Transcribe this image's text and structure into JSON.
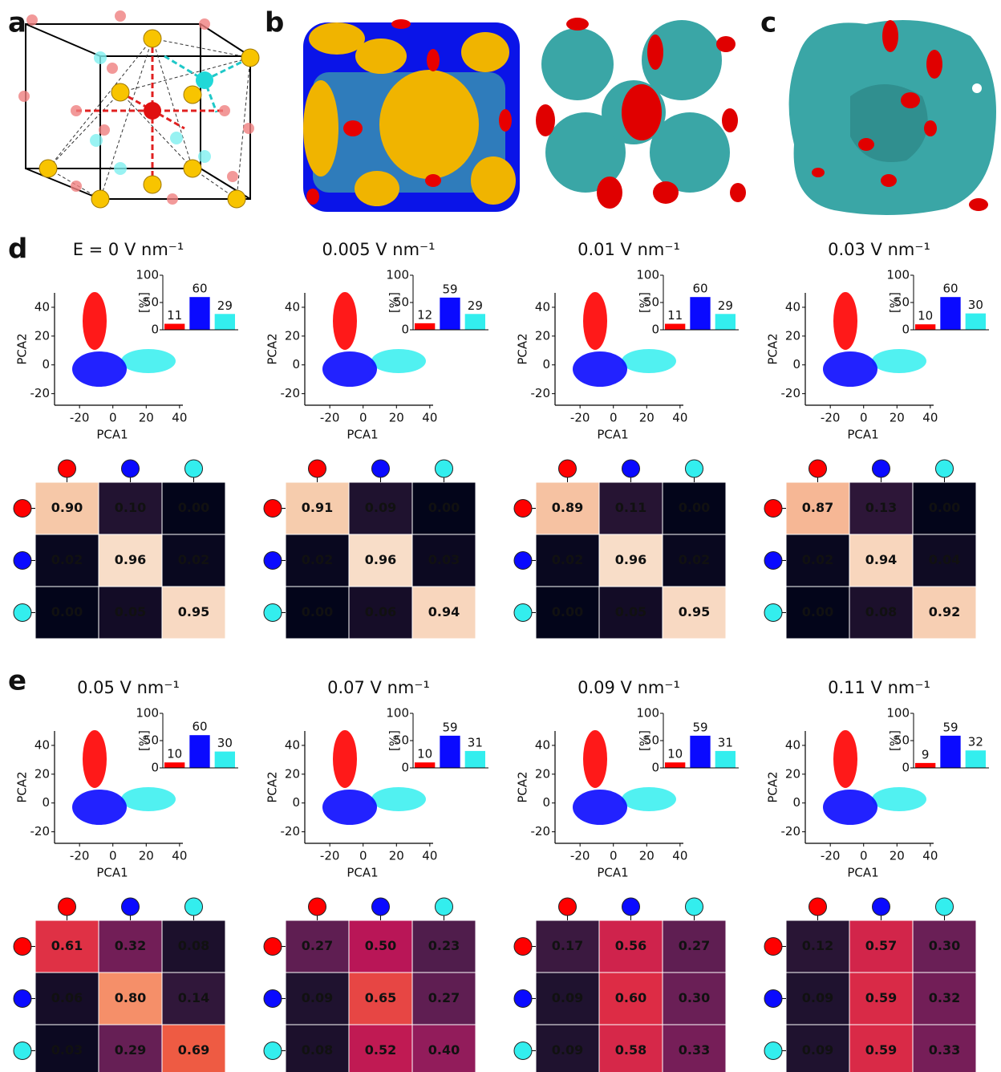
{
  "panel_labels": [
    "a",
    "b",
    "c",
    "d",
    "e"
  ],
  "chart_data": [
    {
      "type": "pca",
      "title": "E = 0 V nm⁻¹",
      "colors": [
        "#ff0000",
        "#0a0aff",
        "#33eeee"
      ],
      "scatter": {
        "xlabel": "PCA1",
        "ylabel": "PCA2",
        "xlim": [
          -35,
          42
        ],
        "ylim": [
          -28,
          50
        ],
        "xticks": [
          -20,
          0,
          20,
          40
        ],
        "yticks": [
          -20,
          0,
          20,
          40
        ]
      },
      "inset": {
        "ylabel": "[%]",
        "values": [
          11,
          60,
          29
        ],
        "ylim": [
          0,
          100
        ],
        "yticks": [
          0,
          50,
          100
        ]
      },
      "heatmap": {
        "values": [
          [
            0.9,
            0.1,
            0
          ],
          [
            0.02,
            0.96,
            0.02
          ],
          [
            0,
            0.05,
            0.95
          ]
        ],
        "value_labels": [
          [
            "0.90",
            "0.10",
            "0.00"
          ],
          [
            "0.02",
            "0.96",
            "0.02"
          ],
          [
            "0.00",
            "0.05",
            "0.95"
          ]
        ]
      }
    },
    {
      "type": "pca",
      "title": "0.005 V nm⁻¹",
      "colors": [
        "#ff0000",
        "#0a0aff",
        "#33eeee"
      ],
      "scatter": {
        "xlabel": "PCA1",
        "ylabel": "PCA2",
        "xlim": [
          -35,
          42
        ],
        "ylim": [
          -28,
          50
        ],
        "xticks": [
          -20,
          0,
          20,
          40
        ],
        "yticks": [
          -20,
          0,
          20,
          40
        ]
      },
      "inset": {
        "ylabel": "[%]",
        "values": [
          12,
          59,
          29
        ],
        "ylim": [
          0,
          100
        ],
        "yticks": [
          0,
          50,
          100
        ]
      },
      "heatmap": {
        "values": [
          [
            0.91,
            0.09,
            0
          ],
          [
            0.02,
            0.96,
            0.03
          ],
          [
            0,
            0.06,
            0.94
          ]
        ],
        "value_labels": [
          [
            "0.91",
            "0.09",
            "0.00"
          ],
          [
            "0.02",
            "0.96",
            "0.03"
          ],
          [
            "0.00",
            "0.06",
            "0.94"
          ]
        ]
      }
    },
    {
      "type": "pca",
      "title": "0.01 V nm⁻¹",
      "colors": [
        "#ff0000",
        "#0a0aff",
        "#33eeee"
      ],
      "scatter": {
        "xlabel": "PCA1",
        "ylabel": "PCA2",
        "xlim": [
          -35,
          42
        ],
        "ylim": [
          -28,
          50
        ],
        "xticks": [
          -20,
          0,
          20,
          40
        ],
        "yticks": [
          -20,
          0,
          20,
          40
        ]
      },
      "inset": {
        "ylabel": "[%]",
        "values": [
          11,
          60,
          29
        ],
        "ylim": [
          0,
          100
        ],
        "yticks": [
          0,
          50,
          100
        ]
      },
      "heatmap": {
        "values": [
          [
            0.89,
            0.11,
            0
          ],
          [
            0.02,
            0.96,
            0.02
          ],
          [
            0,
            0.05,
            0.95
          ]
        ],
        "value_labels": [
          [
            "0.89",
            "0.11",
            "0.00"
          ],
          [
            "0.02",
            "0.96",
            "0.02"
          ],
          [
            "0.00",
            "0.05",
            "0.95"
          ]
        ]
      }
    },
    {
      "type": "pca",
      "title": "0.03 V nm⁻¹",
      "colors": [
        "#ff0000",
        "#0a0aff",
        "#33eeee"
      ],
      "scatter": {
        "xlabel": "PCA1",
        "ylabel": "PCA2",
        "xlim": [
          -35,
          42
        ],
        "ylim": [
          -28,
          50
        ],
        "xticks": [
          -20,
          0,
          20,
          40
        ],
        "yticks": [
          -20,
          0,
          20,
          40
        ]
      },
      "inset": {
        "ylabel": "[%]",
        "values": [
          10,
          60,
          30
        ],
        "ylim": [
          0,
          100
        ],
        "yticks": [
          0,
          50,
          100
        ]
      },
      "heatmap": {
        "values": [
          [
            0.87,
            0.13,
            0
          ],
          [
            0.02,
            0.94,
            0.04
          ],
          [
            0,
            0.08,
            0.92
          ]
        ],
        "value_labels": [
          [
            "0.87",
            "0.13",
            "0.00"
          ],
          [
            "0.02",
            "0.94",
            "0.04"
          ],
          [
            "0.00",
            "0.08",
            "0.92"
          ]
        ]
      }
    },
    {
      "type": "pca",
      "title": "0.05 V nm⁻¹",
      "colors": [
        "#ff0000",
        "#0a0aff",
        "#33eeee"
      ],
      "scatter": {
        "xlabel": "PCA1",
        "ylabel": "PCA2",
        "xlim": [
          -35,
          42
        ],
        "ylim": [
          -28,
          50
        ],
        "xticks": [
          -20,
          0,
          20,
          40
        ],
        "yticks": [
          -20,
          0,
          20,
          40
        ]
      },
      "inset": {
        "ylabel": "[%]",
        "values": [
          10,
          60,
          30
        ],
        "ylim": [
          0,
          100
        ],
        "yticks": [
          0,
          50,
          100
        ]
      },
      "heatmap": {
        "values": [
          [
            0.61,
            0.32,
            0.08
          ],
          [
            0.06,
            0.8,
            0.14
          ],
          [
            0.03,
            0.29,
            0.69
          ]
        ],
        "value_labels": [
          [
            "0.61",
            "0.32",
            "0.08"
          ],
          [
            "0.06",
            "0.80",
            "0.14"
          ],
          [
            "0.03",
            "0.29",
            "0.69"
          ]
        ]
      }
    },
    {
      "type": "pca",
      "title": "0.07 V nm⁻¹",
      "colors": [
        "#ff0000",
        "#0a0aff",
        "#33eeee"
      ],
      "scatter": {
        "xlabel": "PCA1",
        "ylabel": "PCA2",
        "xlim": [
          -35,
          42
        ],
        "ylim": [
          -28,
          50
        ],
        "xticks": [
          -20,
          0,
          20,
          40
        ],
        "yticks": [
          -20,
          0,
          20,
          40
        ]
      },
      "inset": {
        "ylabel": "[%]",
        "values": [
          10,
          59,
          31
        ],
        "ylim": [
          0,
          100
        ],
        "yticks": [
          0,
          50,
          100
        ]
      },
      "heatmap": {
        "values": [
          [
            0.27,
            0.5,
            0.23
          ],
          [
            0.09,
            0.65,
            0.27
          ],
          [
            0.08,
            0.52,
            0.4
          ]
        ],
        "value_labels": [
          [
            "0.27",
            "0.50",
            "0.23"
          ],
          [
            "0.09",
            "0.65",
            "0.27"
          ],
          [
            "0.08",
            "0.52",
            "0.40"
          ]
        ]
      }
    },
    {
      "type": "pca",
      "title": "0.09 V nm⁻¹",
      "colors": [
        "#ff0000",
        "#0a0aff",
        "#33eeee"
      ],
      "scatter": {
        "xlabel": "PCA1",
        "ylabel": "PCA2",
        "xlim": [
          -35,
          42
        ],
        "ylim": [
          -28,
          50
        ],
        "xticks": [
          -20,
          0,
          20,
          40
        ],
        "yticks": [
          -20,
          0,
          20,
          40
        ]
      },
      "inset": {
        "ylabel": "[%]",
        "values": [
          10,
          59,
          31
        ],
        "ylim": [
          0,
          100
        ],
        "yticks": [
          0,
          50,
          100
        ]
      },
      "heatmap": {
        "values": [
          [
            0.17,
            0.56,
            0.27
          ],
          [
            0.09,
            0.6,
            0.3
          ],
          [
            0.09,
            0.58,
            0.33
          ]
        ],
        "value_labels": [
          [
            "0.17",
            "0.56",
            "0.27"
          ],
          [
            "0.09",
            "0.60",
            "0.30"
          ],
          [
            "0.09",
            "0.58",
            "0.33"
          ]
        ]
      }
    },
    {
      "type": "pca",
      "title": "0.11 V nm⁻¹",
      "colors": [
        "#ff0000",
        "#0a0aff",
        "#33eeee"
      ],
      "scatter": {
        "xlabel": "PCA1",
        "ylabel": "PCA2",
        "xlim": [
          -35,
          42
        ],
        "ylim": [
          -28,
          50
        ],
        "xticks": [
          -20,
          0,
          20,
          40
        ],
        "yticks": [
          -20,
          0,
          20,
          40
        ]
      },
      "inset": {
        "ylabel": "[%]",
        "values": [
          9,
          59,
          32
        ],
        "ylim": [
          0,
          100
        ],
        "yticks": [
          0,
          50,
          100
        ]
      },
      "heatmap": {
        "values": [
          [
            0.12,
            0.57,
            0.3
          ],
          [
            0.09,
            0.59,
            0.32
          ],
          [
            0.09,
            0.59,
            0.33
          ]
        ],
        "value_labels": [
          [
            "0.12",
            "0.57",
            "0.30"
          ],
          [
            "0.09",
            "0.59",
            "0.32"
          ],
          [
            "0.09",
            "0.59",
            "0.33"
          ]
        ]
      }
    }
  ]
}
